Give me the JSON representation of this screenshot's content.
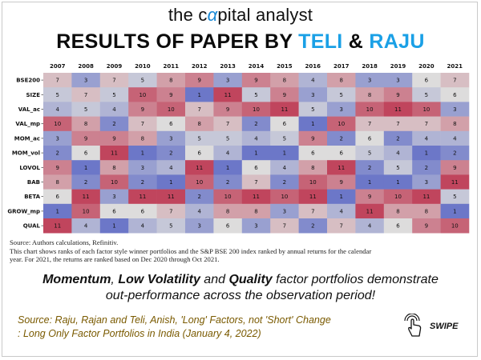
{
  "header": {
    "brand_pre": "the c",
    "brand_alpha": "α",
    "brand_post": "pital analyst",
    "title_main": "RESULTS OF PAPER BY ",
    "title_name1": "TELI",
    "title_amp": " & ",
    "title_name2": "RAJU"
  },
  "chart_data": {
    "type": "heatmap",
    "columns": [
      "2007",
      "2008",
      "2009",
      "2010",
      "2011",
      "2012",
      "2013",
      "2014",
      "2015",
      "2016",
      "2017",
      "2018",
      "2019",
      "2020",
      "2021"
    ],
    "rows": [
      "BSE200",
      "SIZE",
      "VAL_ac",
      "VAL_mp",
      "MOM_ac",
      "MOM_vol",
      "LOVOL",
      "BAB",
      "BETA",
      "GROW_mp",
      "QUAL"
    ],
    "values": [
      [
        7,
        3,
        7,
        5,
        8,
        9,
        3,
        9,
        8,
        4,
        8,
        3,
        3,
        6,
        7
      ],
      [
        5,
        7,
        5,
        10,
        9,
        1,
        11,
        5,
        9,
        3,
        5,
        8,
        9,
        5,
        6
      ],
      [
        4,
        5,
        4,
        9,
        10,
        7,
        9,
        10,
        11,
        5,
        3,
        10,
        11,
        10,
        3
      ],
      [
        10,
        8,
        2,
        7,
        6,
        8,
        7,
        2,
        6,
        1,
        10,
        7,
        7,
        7,
        8
      ],
      [
        3,
        9,
        9,
        8,
        3,
        5,
        5,
        4,
        5,
        9,
        2,
        6,
        2,
        4,
        4
      ],
      [
        2,
        6,
        11,
        1,
        2,
        6,
        4,
        1,
        1,
        6,
        6,
        5,
        4,
        1,
        2
      ],
      [
        9,
        1,
        8,
        3,
        4,
        11,
        1,
        6,
        4,
        8,
        11,
        2,
        5,
        2,
        9
      ],
      [
        8,
        2,
        10,
        2,
        1,
        10,
        2,
        7,
        2,
        10,
        9,
        1,
        1,
        3,
        11
      ],
      [
        6,
        11,
        3,
        11,
        11,
        2,
        10,
        11,
        10,
        11,
        1,
        9,
        10,
        11,
        5
      ],
      [
        1,
        10,
        6,
        6,
        7,
        4,
        8,
        8,
        3,
        7,
        4,
        11,
        8,
        8,
        1
      ],
      [
        11,
        4,
        1,
        4,
        5,
        3,
        6,
        3,
        7,
        2,
        7,
        4,
        6,
        9,
        10
      ]
    ],
    "scale": [
      1,
      11
    ],
    "colors": {
      "low": "#3b4cc0",
      "mid": "#dddcdc",
      "high": "#b40426"
    }
  },
  "notes": {
    "line1": "Source: Authors calculations, Refinitiv.",
    "line2": "This chart shows ranks of each factor style winner portfolios and the S&P BSE 200 index ranked by annual returns for the calendar",
    "line3": "year.  For 2021, the returns are ranked based on Dec 2020 through Oct 2021."
  },
  "takeaway": {
    "w1": "Momentum",
    "t1": ", ",
    "w2": "Low Volatility",
    "t2": " and ",
    "w3": "Quality",
    "t3": " factor portfolios demonstrate",
    "line2": "out-performance across the observation period!"
  },
  "citation": {
    "line1": "Source: Raju, Rajan and Teli, Anish, 'Long' Factors, not 'Short' Change",
    "line2": ": Long Only Factor Portfolios in India (January 4, 2022)"
  },
  "swipe": {
    "label": "SWIPE",
    "icon": "hand-swipe-icon"
  }
}
